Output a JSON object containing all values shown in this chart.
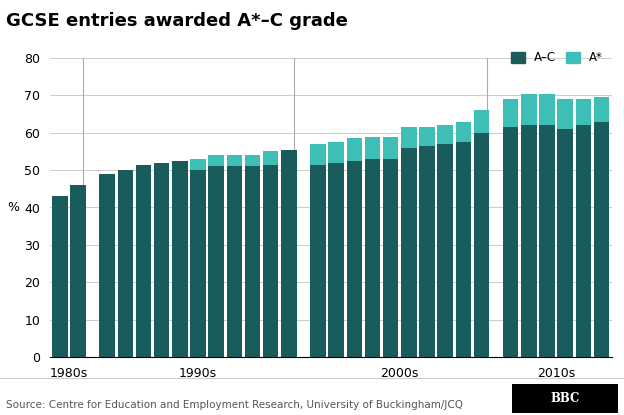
{
  "title": "GCSE entries awarded A*–C grade",
  "ylabel": "%",
  "source": "Source: Centre for Education and Employment Research, University of Buckingham/JCQ",
  "ylim": [
    0,
    80
  ],
  "yticks": [
    0,
    10,
    20,
    30,
    40,
    50,
    60,
    70,
    80
  ],
  "color_ac": "#1a5c5c",
  "color_astar": "#3dbfb8",
  "legend_labels": [
    "A–C",
    "A*"
  ],
  "background_color": "#ffffff",
  "grid_color": "#cccccc",
  "title_fontsize": 13,
  "axis_fontsize": 9,
  "source_fontsize": 7.5,
  "groups": [
    {
      "decade": "1980s",
      "bars": [
        {
          "ac": 43,
          "astar": 0
        },
        {
          "ac": 46,
          "astar": 0
        }
      ]
    },
    {
      "decade": "1990s",
      "bars": [
        {
          "ac": 49,
          "astar": 0
        },
        {
          "ac": 50,
          "astar": 0
        },
        {
          "ac": 51.5,
          "astar": 0
        },
        {
          "ac": 52,
          "astar": 0
        },
        {
          "ac": 52.5,
          "astar": 0
        },
        {
          "ac": 50,
          "astar": 3
        },
        {
          "ac": 51,
          "astar": 3
        },
        {
          "ac": 51,
          "astar": 3
        },
        {
          "ac": 51,
          "astar": 3
        },
        {
          "ac": 51.5,
          "astar": 3.5
        },
        {
          "ac": 55.5,
          "astar": 0
        }
      ]
    },
    {
      "decade": "2000s",
      "bars": [
        {
          "ac": 51.5,
          "astar": 5.5
        },
        {
          "ac": 52,
          "astar": 5.5
        },
        {
          "ac": 52.5,
          "astar": 6
        },
        {
          "ac": 53,
          "astar": 6
        },
        {
          "ac": 53,
          "astar": 6
        },
        {
          "ac": 56,
          "astar": 5.5
        },
        {
          "ac": 56.5,
          "astar": 5
        },
        {
          "ac": 57,
          "astar": 5
        },
        {
          "ac": 57.5,
          "astar": 5.5
        },
        {
          "ac": 60,
          "astar": 6
        }
      ]
    },
    {
      "decade": "2010s",
      "bars": [
        {
          "ac": 61.5,
          "astar": 7.5
        },
        {
          "ac": 62,
          "astar": 8.5
        },
        {
          "ac": 62,
          "astar": 8.5
        },
        {
          "ac": 61,
          "astar": 8
        },
        {
          "ac": 62,
          "astar": 7
        },
        {
          "ac": 63,
          "astar": 6.5
        }
      ]
    }
  ]
}
